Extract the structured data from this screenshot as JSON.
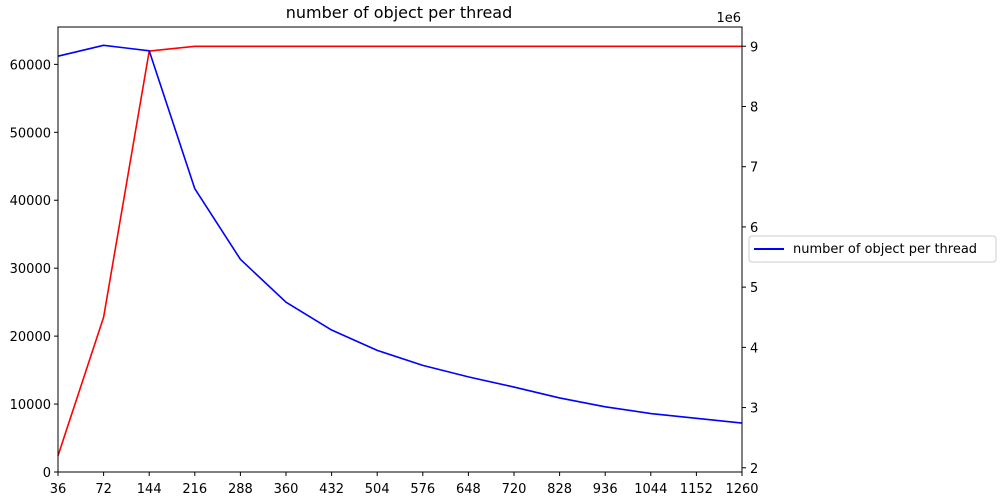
{
  "chart_data": {
    "type": "line",
    "title": "number of object per thread",
    "x": [
      36,
      72,
      144,
      216,
      288,
      360,
      432,
      504,
      576,
      648,
      720,
      828,
      936,
      1044,
      1152,
      1260
    ],
    "x_tick_labels": [
      "36",
      "72",
      "144",
      "216",
      "288",
      "360",
      "432",
      "504",
      "576",
      "648",
      "720",
      "828",
      "936",
      "1044",
      "1152",
      "1260"
    ],
    "left_axis": {
      "ylim": [
        0,
        65500
      ],
      "ticks": [
        0,
        10000,
        20000,
        30000,
        40000,
        50000,
        60000
      ],
      "tick_labels": [
        "0",
        "10000",
        "20000",
        "30000",
        "40000",
        "50000",
        "60000"
      ]
    },
    "right_axis": {
      "ylim": [
        1.93,
        9.32
      ],
      "scale_label": "1e6",
      "ticks": [
        2,
        3,
        4,
        5,
        6,
        7,
        8,
        9
      ],
      "tick_labels": [
        "2",
        "3",
        "4",
        "5",
        "6",
        "7",
        "8",
        "9"
      ]
    },
    "series": [
      {
        "name": "number of object per thread",
        "axis": "left",
        "color": "#0000ff",
        "values": [
          61200,
          62800,
          62000,
          41700,
          31300,
          25000,
          20900,
          17900,
          15700,
          14000,
          12500,
          10900,
          9600,
          8600,
          7900,
          7200
        ]
      },
      {
        "axis": "right",
        "color": "#ff0000",
        "values": [
          2.2,
          4.5,
          8.92,
          9.0,
          9.0,
          9.0,
          9.0,
          9.0,
          9.0,
          9.0,
          9.0,
          9.0,
          9.0,
          9.0,
          9.0,
          9.0
        ]
      }
    ],
    "legend": {
      "position": "outside-right",
      "entries": [
        "number of object per thread"
      ]
    },
    "grid": false
  }
}
